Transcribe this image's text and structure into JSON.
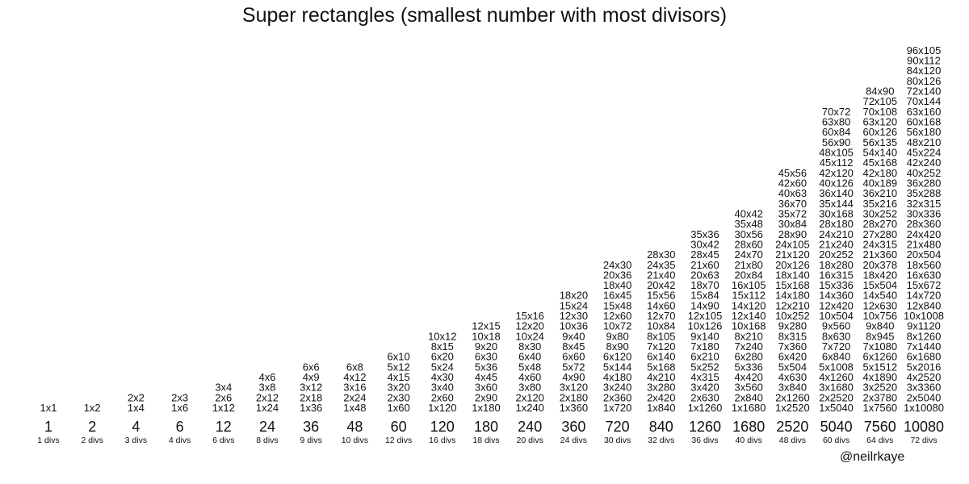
{
  "title": "Super rectangles (smallest number with most divisors)",
  "credit": "@neilrkaye",
  "chart_data": {
    "type": "table",
    "columns": [
      {
        "n": "1",
        "divs": "1 divs",
        "rects": [
          "1x1"
        ]
      },
      {
        "n": "2",
        "divs": "2 divs",
        "rects": [
          "1x2"
        ]
      },
      {
        "n": "4",
        "divs": "3 divs",
        "rects": [
          "2x2",
          "1x4"
        ]
      },
      {
        "n": "6",
        "divs": "4 divs",
        "rects": [
          "2x3",
          "1x6"
        ]
      },
      {
        "n": "12",
        "divs": "6 divs",
        "rects": [
          "3x4",
          "2x6",
          "1x12"
        ]
      },
      {
        "n": "24",
        "divs": "8 divs",
        "rects": [
          "4x6",
          "3x8",
          "2x12",
          "1x24"
        ]
      },
      {
        "n": "36",
        "divs": "9 divs",
        "rects": [
          "6x6",
          "4x9",
          "3x12",
          "2x18",
          "1x36"
        ]
      },
      {
        "n": "48",
        "divs": "10 divs",
        "rects": [
          "6x8",
          "4x12",
          "3x16",
          "2x24",
          "1x48"
        ]
      },
      {
        "n": "60",
        "divs": "12 divs",
        "rects": [
          "6x10",
          "5x12",
          "4x15",
          "3x20",
          "2x30",
          "1x60"
        ]
      },
      {
        "n": "120",
        "divs": "16 divs",
        "rects": [
          "10x12",
          "8x15",
          "6x20",
          "5x24",
          "4x30",
          "3x40",
          "2x60",
          "1x120"
        ]
      },
      {
        "n": "180",
        "divs": "18 divs",
        "rects": [
          "12x15",
          "10x18",
          "9x20",
          "6x30",
          "5x36",
          "4x45",
          "3x60",
          "2x90",
          "1x180"
        ]
      },
      {
        "n": "240",
        "divs": "20 divs",
        "rects": [
          "15x16",
          "12x20",
          "10x24",
          "8x30",
          "6x40",
          "5x48",
          "4x60",
          "3x80",
          "2x120",
          "1x240"
        ]
      },
      {
        "n": "360",
        "divs": "24 divs",
        "rects": [
          "18x20",
          "15x24",
          "12x30",
          "10x36",
          "9x40",
          "8x45",
          "6x60",
          "5x72",
          "4x90",
          "3x120",
          "2x180",
          "1x360"
        ]
      },
      {
        "n": "720",
        "divs": "30 divs",
        "rects": [
          "24x30",
          "20x36",
          "18x40",
          "16x45",
          "15x48",
          "12x60",
          "10x72",
          "9x80",
          "8x90",
          "6x120",
          "5x144",
          "4x180",
          "3x240",
          "2x360",
          "1x720"
        ]
      },
      {
        "n": "840",
        "divs": "32 divs",
        "rects": [
          "28x30",
          "24x35",
          "21x40",
          "20x42",
          "15x56",
          "14x60",
          "12x70",
          "10x84",
          "8x105",
          "7x120",
          "6x140",
          "5x168",
          "4x210",
          "3x280",
          "2x420",
          "1x840"
        ]
      },
      {
        "n": "1260",
        "divs": "36 divs",
        "rects": [
          "35x36",
          "30x42",
          "28x45",
          "21x60",
          "20x63",
          "18x70",
          "15x84",
          "14x90",
          "12x105",
          "10x126",
          "9x140",
          "7x180",
          "6x210",
          "5x252",
          "4x315",
          "3x420",
          "2x630",
          "1x1260"
        ]
      },
      {
        "n": "1680",
        "divs": "40 divs",
        "rects": [
          "40x42",
          "35x48",
          "30x56",
          "28x60",
          "24x70",
          "21x80",
          "20x84",
          "16x105",
          "15x112",
          "14x120",
          "12x140",
          "10x168",
          "8x210",
          "7x240",
          "6x280",
          "5x336",
          "4x420",
          "3x560",
          "2x840",
          "1x1680"
        ]
      },
      {
        "n": "2520",
        "divs": "48 divs",
        "rects": [
          "45x56",
          "42x60",
          "40x63",
          "36x70",
          "35x72",
          "30x84",
          "28x90",
          "24x105",
          "21x120",
          "20x126",
          "18x140",
          "15x168",
          "14x180",
          "12x210",
          "10x252",
          "9x280",
          "8x315",
          "7x360",
          "6x420",
          "5x504",
          "4x630",
          "3x840",
          "2x1260",
          "1x2520"
        ]
      },
      {
        "n": "5040",
        "divs": "60 divs",
        "rects": [
          "70x72",
          "63x80",
          "60x84",
          "56x90",
          "48x105",
          "45x112",
          "42x120",
          "40x126",
          "36x140",
          "35x144",
          "30x168",
          "28x180",
          "24x210",
          "21x240",
          "20x252",
          "18x280",
          "16x315",
          "15x336",
          "14x360",
          "12x420",
          "10x504",
          "9x560",
          "8x630",
          "7x720",
          "6x840",
          "5x1008",
          "4x1260",
          "3x1680",
          "2x2520",
          "1x5040"
        ]
      },
      {
        "n": "7560",
        "divs": "64 divs",
        "rects": [
          "84x90",
          "72x105",
          "70x108",
          "63x120",
          "60x126",
          "56x135",
          "54x140",
          "45x168",
          "42x180",
          "40x189",
          "36x210",
          "35x216",
          "30x252",
          "28x270",
          "27x280",
          "24x315",
          "21x360",
          "20x378",
          "18x420",
          "15x504",
          "14x540",
          "12x630",
          "10x756",
          "9x840",
          "8x945",
          "7x1080",
          "6x1260",
          "5x1512",
          "4x1890",
          "3x2520",
          "2x3780",
          "1x7560"
        ]
      },
      {
        "n": "10080",
        "divs": "72 divs",
        "rects": [
          "96x105",
          "90x112",
          "84x120",
          "80x126",
          "72x140",
          "70x144",
          "63x160",
          "60x168",
          "56x180",
          "48x210",
          "45x224",
          "42x240",
          "40x252",
          "36x280",
          "35x288",
          "32x315",
          "30x336",
          "28x360",
          "24x420",
          "21x480",
          "20x504",
          "18x560",
          "16x630",
          "15x672",
          "14x720",
          "12x840",
          "10x1008",
          "9x1120",
          "8x1260",
          "7x1440",
          "6x1680",
          "5x2016",
          "4x2520",
          "3x3360",
          "2x5040",
          "1x10080"
        ]
      }
    ]
  }
}
